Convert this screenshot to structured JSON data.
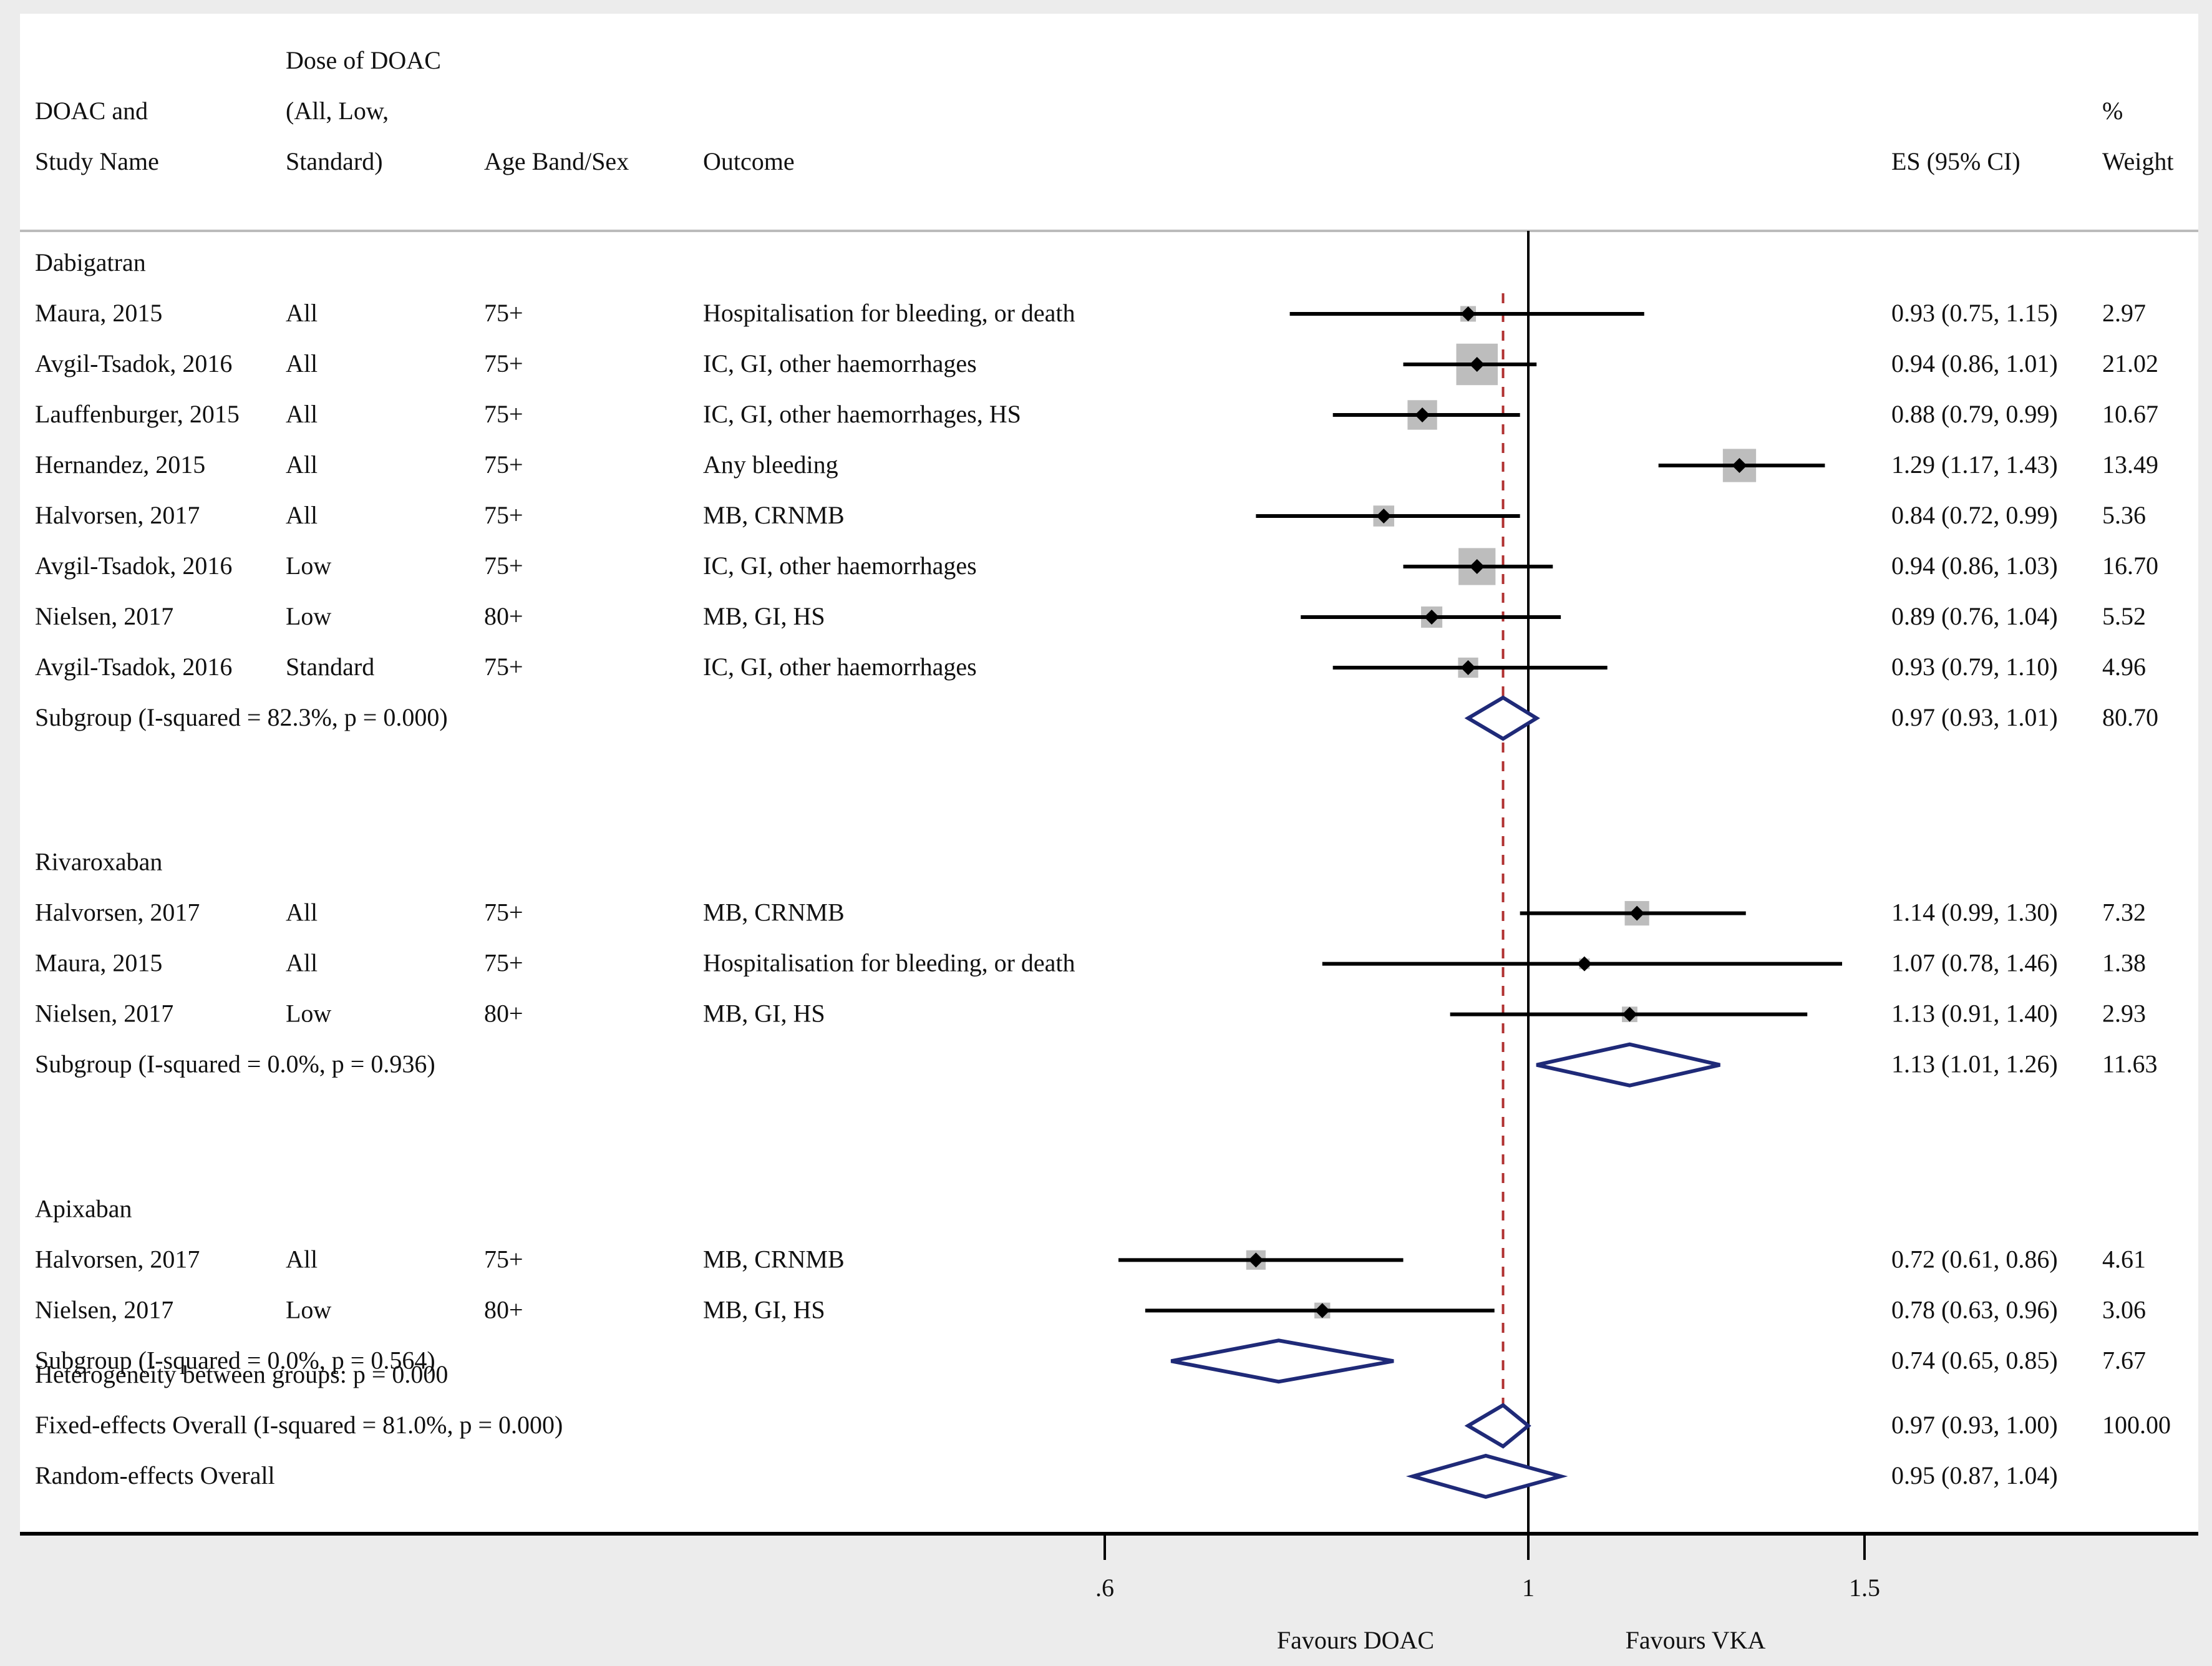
{
  "chart_data": {
    "type": "forest",
    "header": {
      "col1": [
        "DOAC and",
        "Study Name"
      ],
      "col2": [
        "Dose of DOAC",
        "(All, Low,",
        "Standard)"
      ],
      "col3": [
        "Age Band/Sex"
      ],
      "col4": [
        "Outcome"
      ],
      "col5": [
        "ES (95% CI)"
      ],
      "col6": [
        "%",
        "Weight"
      ]
    },
    "x_axis": {
      "scale": "log",
      "ticks": [
        0.6,
        1,
        1.5
      ],
      "tick_labels": [
        ".6",
        "1",
        "1.5"
      ],
      "range": [
        0.51,
        2.4
      ],
      "null_line": 1,
      "left_label": "Favours DOAC",
      "right_label": "Favours VKA"
    },
    "pooled_reference_line": 0.97,
    "colors": {
      "diamond": "#1f2a78",
      "reference_line": "#b03030",
      "box": "#bdbdbd",
      "background": "#ececec",
      "line": "#000000"
    },
    "groups": [
      {
        "name": "Dabigatran",
        "studies": [
          {
            "study": "Maura, 2015",
            "dose": "All",
            "age": "75+",
            "outcome": "Hospitalisation for bleeding, or death",
            "es": 0.93,
            "lo": 0.75,
            "hi": 1.15,
            "es_text": "0.93 (0.75, 1.15)",
            "weight": 2.97,
            "weight_text": "2.97"
          },
          {
            "study": "Avgil-Tsadok, 2016",
            "dose": "All",
            "age": "75+",
            "outcome": "IC, GI, other haemorrhages",
            "es": 0.94,
            "lo": 0.86,
            "hi": 1.01,
            "es_text": "0.94 (0.86, 1.01)",
            "weight": 21.02,
            "weight_text": "21.02"
          },
          {
            "study": "Lauffenburger, 2015",
            "dose": "All",
            "age": "75+",
            "outcome": "IC, GI, other haemorrhages, HS",
            "es": 0.88,
            "lo": 0.79,
            "hi": 0.99,
            "es_text": "0.88 (0.79, 0.99)",
            "weight": 10.67,
            "weight_text": "10.67"
          },
          {
            "study": "Hernandez, 2015",
            "dose": "All",
            "age": "75+",
            "outcome": "Any bleeding",
            "es": 1.29,
            "lo": 1.17,
            "hi": 1.43,
            "es_text": "1.29 (1.17, 1.43)",
            "weight": 13.49,
            "weight_text": "13.49"
          },
          {
            "study": "Halvorsen, 2017",
            "dose": "All",
            "age": "75+",
            "outcome": "MB, CRNMB",
            "es": 0.84,
            "lo": 0.72,
            "hi": 0.99,
            "es_text": "0.84 (0.72, 0.99)",
            "weight": 5.36,
            "weight_text": "5.36"
          },
          {
            "study": "Avgil-Tsadok, 2016",
            "dose": "Low",
            "age": "75+",
            "outcome": "IC, GI, other haemorrhages",
            "es": 0.94,
            "lo": 0.86,
            "hi": 1.03,
            "es_text": "0.94 (0.86, 1.03)",
            "weight": 16.7,
            "weight_text": "16.70"
          },
          {
            "study": "Nielsen, 2017",
            "dose": "Low",
            "age": "80+",
            "outcome": "MB, GI, HS",
            "es": 0.89,
            "lo": 0.76,
            "hi": 1.04,
            "es_text": "0.89 (0.76, 1.04)",
            "weight": 5.52,
            "weight_text": "5.52"
          },
          {
            "study": "Avgil-Tsadok, 2016",
            "dose": "Standard",
            "age": "75+",
            "outcome": "IC, GI, other haemorrhages",
            "es": 0.93,
            "lo": 0.79,
            "hi": 1.1,
            "es_text": "0.93 (0.79, 1.10)",
            "weight": 4.96,
            "weight_text": "4.96"
          }
        ],
        "subgroup": {
          "label": "Subgroup (I-squared = 82.3%, p = 0.000)",
          "es": 0.97,
          "lo": 0.93,
          "hi": 1.01,
          "es_text": "0.97 (0.93, 1.01)",
          "weight_text": "80.70"
        }
      },
      {
        "name": "Rivaroxaban",
        "studies": [
          {
            "study": "Halvorsen, 2017",
            "dose": "All",
            "age": "75+",
            "outcome": "MB, CRNMB",
            "es": 1.14,
            "lo": 0.99,
            "hi": 1.3,
            "es_text": "1.14 (0.99, 1.30)",
            "weight": 7.32,
            "weight_text": "7.32"
          },
          {
            "study": "Maura, 2015",
            "dose": "All",
            "age": "75+",
            "outcome": "Hospitalisation for bleeding, or death",
            "es": 1.07,
            "lo": 0.78,
            "hi": 1.46,
            "es_text": "1.07 (0.78, 1.46)",
            "weight": 1.38,
            "weight_text": "1.38"
          },
          {
            "study": "Nielsen, 2017",
            "dose": "Low",
            "age": "80+",
            "outcome": "MB, GI, HS",
            "es": 1.13,
            "lo": 0.91,
            "hi": 1.4,
            "es_text": "1.13 (0.91, 1.40)",
            "weight": 2.93,
            "weight_text": "2.93"
          }
        ],
        "subgroup": {
          "label": "Subgroup (I-squared = 0.0%, p = 0.936)",
          "es": 1.13,
          "lo": 1.01,
          "hi": 1.26,
          "es_text": "1.13 (1.01, 1.26)",
          "weight_text": "11.63"
        }
      },
      {
        "name": "Apixaban",
        "studies": [
          {
            "study": "Halvorsen, 2017",
            "dose": "All",
            "age": "75+",
            "outcome": "MB, CRNMB",
            "es": 0.72,
            "lo": 0.61,
            "hi": 0.86,
            "es_text": "0.72 (0.61, 0.86)",
            "weight": 4.61,
            "weight_text": "4.61"
          },
          {
            "study": "Nielsen, 2017",
            "dose": "Low",
            "age": "80+",
            "outcome": "MB, GI, HS",
            "es": 0.78,
            "lo": 0.63,
            "hi": 0.96,
            "es_text": "0.78 (0.63, 0.96)",
            "weight": 3.06,
            "weight_text": "3.06"
          }
        ],
        "subgroup": {
          "label": "Subgroup (I-squared = 0.0%, p = 0.564)",
          "es": 0.74,
          "lo": 0.65,
          "hi": 0.85,
          "es_text": "0.74 (0.65, 0.85)",
          "weight_text": "7.67"
        }
      }
    ],
    "heterogeneity": "Heterogeneity between groups: p = 0.000",
    "overall": [
      {
        "label": "Fixed-effects Overall (I-squared = 81.0%, p = 0.000)",
        "es": 0.97,
        "lo": 0.93,
        "hi": 1.0,
        "es_text": "0.97 (0.93, 1.00)",
        "weight_text": "100.00"
      },
      {
        "label": "Random-effects Overall",
        "es": 0.95,
        "lo": 0.87,
        "hi": 1.04,
        "es_text": "0.95 (0.87, 1.04)",
        "weight_text": ""
      }
    ]
  }
}
